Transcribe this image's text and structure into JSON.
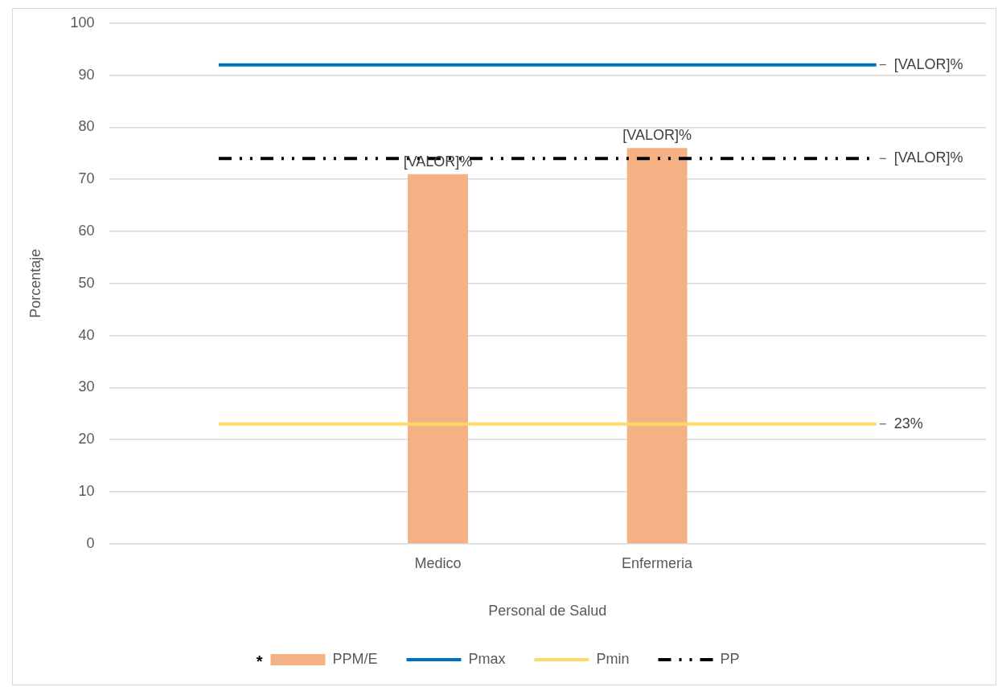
{
  "chart_data": {
    "type": "bar",
    "xlabel": "Personal de Salud",
    "ylabel": "Porcentaje",
    "categories": [
      null,
      "Medico",
      "Enfermeria",
      null
    ],
    "series": [
      {
        "name": "PPM/E",
        "color": "#f4b183",
        "values": [
          null,
          71,
          76,
          null
        ],
        "value_labels": [
          null,
          "[VALOR]%",
          "[VALOR]%",
          null
        ]
      },
      {
        "name": "Pmax",
        "type": "line",
        "color": "#0070c0",
        "values": [
          92,
          92,
          92,
          92
        ],
        "value_labels": [
          null,
          null,
          null,
          "[VALOR]%"
        ]
      },
      {
        "name": "Pmin",
        "type": "line",
        "color": "#ffd966",
        "values": [
          23,
          23,
          23,
          23
        ],
        "value_labels": [
          null,
          null,
          null,
          "23%"
        ]
      },
      {
        "name": "PP",
        "type": "line",
        "color": "#000000",
        "line_style": "dashed",
        "values": [
          74,
          74,
          74,
          74
        ],
        "value_labels": [
          null,
          null,
          null,
          "[VALOR]%"
        ]
      }
    ],
    "ylim": [
      0,
      100
    ],
    "yticks": [
      0,
      10,
      20,
      30,
      40,
      50,
      60,
      70,
      80,
      90,
      100
    ],
    "grid": "y",
    "legend": "bottom",
    "marker": "none",
    "annotations": [
      "*"
    ]
  }
}
